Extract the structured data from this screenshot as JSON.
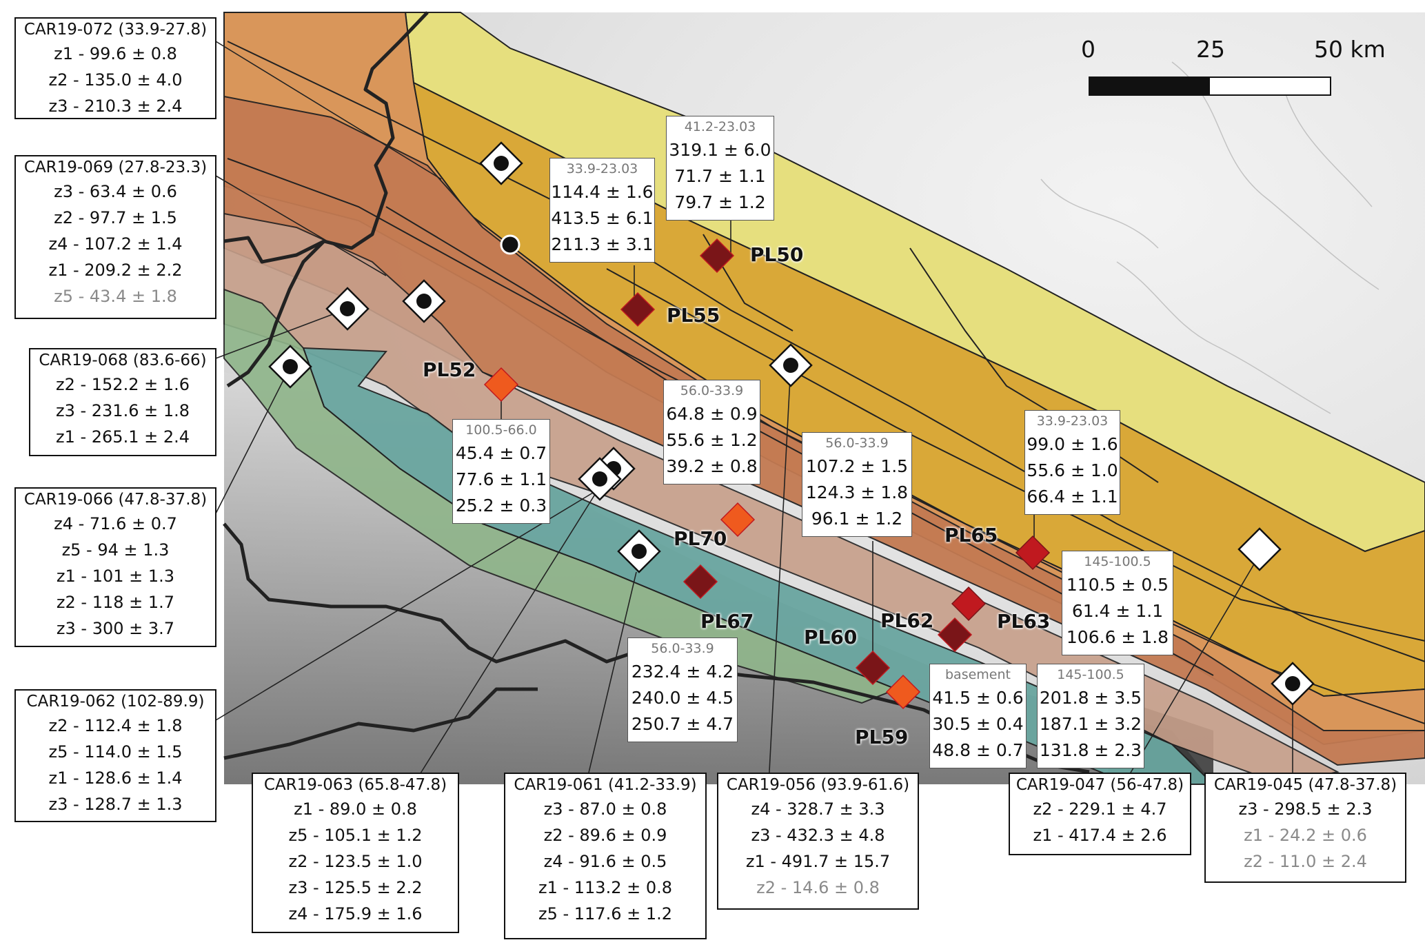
{
  "scale_bar": {
    "ticks": [
      "0",
      "25",
      "50 km"
    ]
  },
  "detrital_samples": [
    {
      "title": "CAR19-072  (33.9-27.8)",
      "rows": [
        {
          "t": "z1 - 99.6 ± 0.8"
        },
        {
          "t": "z2 - 135.0 ± 4.0"
        },
        {
          "t": "z3 - 210.3 ± 2.4"
        }
      ]
    },
    {
      "title": "CAR19-069  (27.8-23.3)",
      "rows": [
        {
          "t": "z3 - 63.4 ± 0.6"
        },
        {
          "t": "z2 - 97.7 ± 1.5"
        },
        {
          "t": "z4 - 107.2 ± 1.4"
        },
        {
          "t": "z1 - 209.2 ± 2.2"
        },
        {
          "t": "z5 - 43.4 ± 1.8",
          "dim": true
        }
      ]
    },
    {
      "title": "CAR19-068  (83.6-66)",
      "rows": [
        {
          "t": "z2 - 152.2 ± 1.6"
        },
        {
          "t": "z3 - 231.6 ± 1.8"
        },
        {
          "t": "z1 - 265.1 ± 2.4"
        }
      ]
    },
    {
      "title": "CAR19-066  (47.8-37.8)",
      "rows": [
        {
          "t": "z4 - 71.6 ± 0.7"
        },
        {
          "t": "z5 - 94 ± 1.3"
        },
        {
          "t": "z1 - 101 ± 1.3"
        },
        {
          "t": "z2 - 118 ± 1.7"
        },
        {
          "t": "z3 - 300 ± 3.7"
        }
      ]
    },
    {
      "title": "CAR19-062  (102-89.9)",
      "rows": [
        {
          "t": "z2 - 112.4 ± 1.8"
        },
        {
          "t": "z5 - 114.0 ± 1.5"
        },
        {
          "t": "z1 - 128.6 ± 1.4"
        },
        {
          "t": "z3 - 128.7 ± 1.3"
        }
      ]
    },
    {
      "title": "CAR19-063  (65.8-47.8)",
      "rows": [
        {
          "t": "z1 - 89.0 ± 0.8"
        },
        {
          "t": "z5 - 105.1 ± 1.2"
        },
        {
          "t": "z2 - 123.5 ± 1.0"
        },
        {
          "t": "z3 - 125.5 ± 2.2"
        },
        {
          "t": "z4 - 175.9 ± 1.6"
        }
      ]
    },
    {
      "title": "CAR19-061  (41.2-33.9)",
      "rows": [
        {
          "t": "z3 - 87.0 ± 0.8"
        },
        {
          "t": "z2 - 89.6 ± 0.9"
        },
        {
          "t": "z4 - 91.6 ± 0.5"
        },
        {
          "t": "z1 - 113.2 ± 0.8"
        },
        {
          "t": "z5 - 117.6 ± 1.2"
        }
      ]
    },
    {
      "title": "CAR19-056  (93.9-61.6)",
      "rows": [
        {
          "t": "z4 - 328.7 ± 3.3"
        },
        {
          "t": "z3 - 432.3 ± 4.8"
        },
        {
          "t": "z1 - 491.7 ± 15.7"
        },
        {
          "t": "z2 - 14.6 ± 0.8",
          "dim": true
        }
      ]
    },
    {
      "title": "CAR19-047  (56-47.8)",
      "rows": [
        {
          "t": "z2 - 229.1 ± 4.7"
        },
        {
          "t": "z1 - 417.4 ± 2.6"
        }
      ]
    },
    {
      "title": "CAR19-045  (47.8-37.8)",
      "rows": [
        {
          "t": "z3 - 298.5 ± 2.3"
        },
        {
          "t": "z1 - 24.2 ± 0.6",
          "dim": true
        },
        {
          "t": "z2 - 11.0 ± 2.4",
          "dim": true
        }
      ]
    }
  ],
  "pl_samples": [
    {
      "label": "PL50",
      "age": "41.2-23.03",
      "vals": [
        "319.1 ± 6.0",
        "71.7 ± 1.1",
        "79.7 ± 1.2"
      ],
      "color": "#7a1518"
    },
    {
      "label": "PL55",
      "age": "33.9-23.03",
      "vals": [
        "114.4 ± 1.6",
        "413.5 ± 6.1",
        "211.3 ± 3.1"
      ],
      "color": "#7a1518"
    },
    {
      "label": "PL52",
      "age": "100.5-66.0",
      "vals": [
        "45.4 ± 0.7",
        "77.6 ± 1.1",
        "25.2 ± 0.3"
      ],
      "color": "#ef5a1e"
    },
    {
      "label": "PL70",
      "age": "56.0-33.9",
      "vals": [
        "64.8 ± 0.9",
        "55.6 ± 1.2",
        "39.2 ± 0.8"
      ],
      "color": "#ef5a1e"
    },
    {
      "label": "PL60",
      "age": "56.0-33.9",
      "vals": [
        "107.2 ± 1.5",
        "124.3 ± 1.8",
        "96.1 ± 1.2"
      ],
      "color": "#7a1518"
    },
    {
      "label": "PL65",
      "age": "33.9-23.03",
      "vals": [
        "99.0 ± 1.6",
        "55.6 ± 1.0",
        "66.4 ± 1.1"
      ],
      "color": "#c0191f"
    },
    {
      "label": "PL63",
      "age": "145-100.5",
      "vals": [
        "110.5 ± 0.5",
        "61.4 ± 1.1",
        "106.6 ± 1.8"
      ],
      "color": "#c0191f"
    },
    {
      "label": "PL67",
      "age": "56.0-33.9",
      "vals": [
        "232.4 ± 4.2",
        "240.0 ± 4.5",
        "250.7 ± 4.7"
      ],
      "color": "#7a1518"
    },
    {
      "label": "PL59",
      "age": "basement",
      "vals": [
        "41.5 ± 0.6",
        "30.5 ± 0.4",
        "48.8 ± 0.7"
      ],
      "color": "#ef5a1e"
    },
    {
      "label": "PL62",
      "age": "145-100.5",
      "vals": [
        "201.8 ± 3.5",
        "187.1 ± 3.2",
        "131.8 ± 2.3"
      ],
      "color": "#7a1518"
    }
  ],
  "colors": {
    "yellow_belt": "#e6df7e",
    "gold_belt": "#d9a838",
    "orange_belt": "#d9965a",
    "rust_belt": "#c37a52",
    "pink_belt": "#c79f8a",
    "teal_belt": "#6aa6a0",
    "green_belt": "#8fb58a",
    "dark_red_marker": "#7a1518",
    "red_marker": "#c0191f",
    "orange_marker": "#ef5a1e"
  }
}
